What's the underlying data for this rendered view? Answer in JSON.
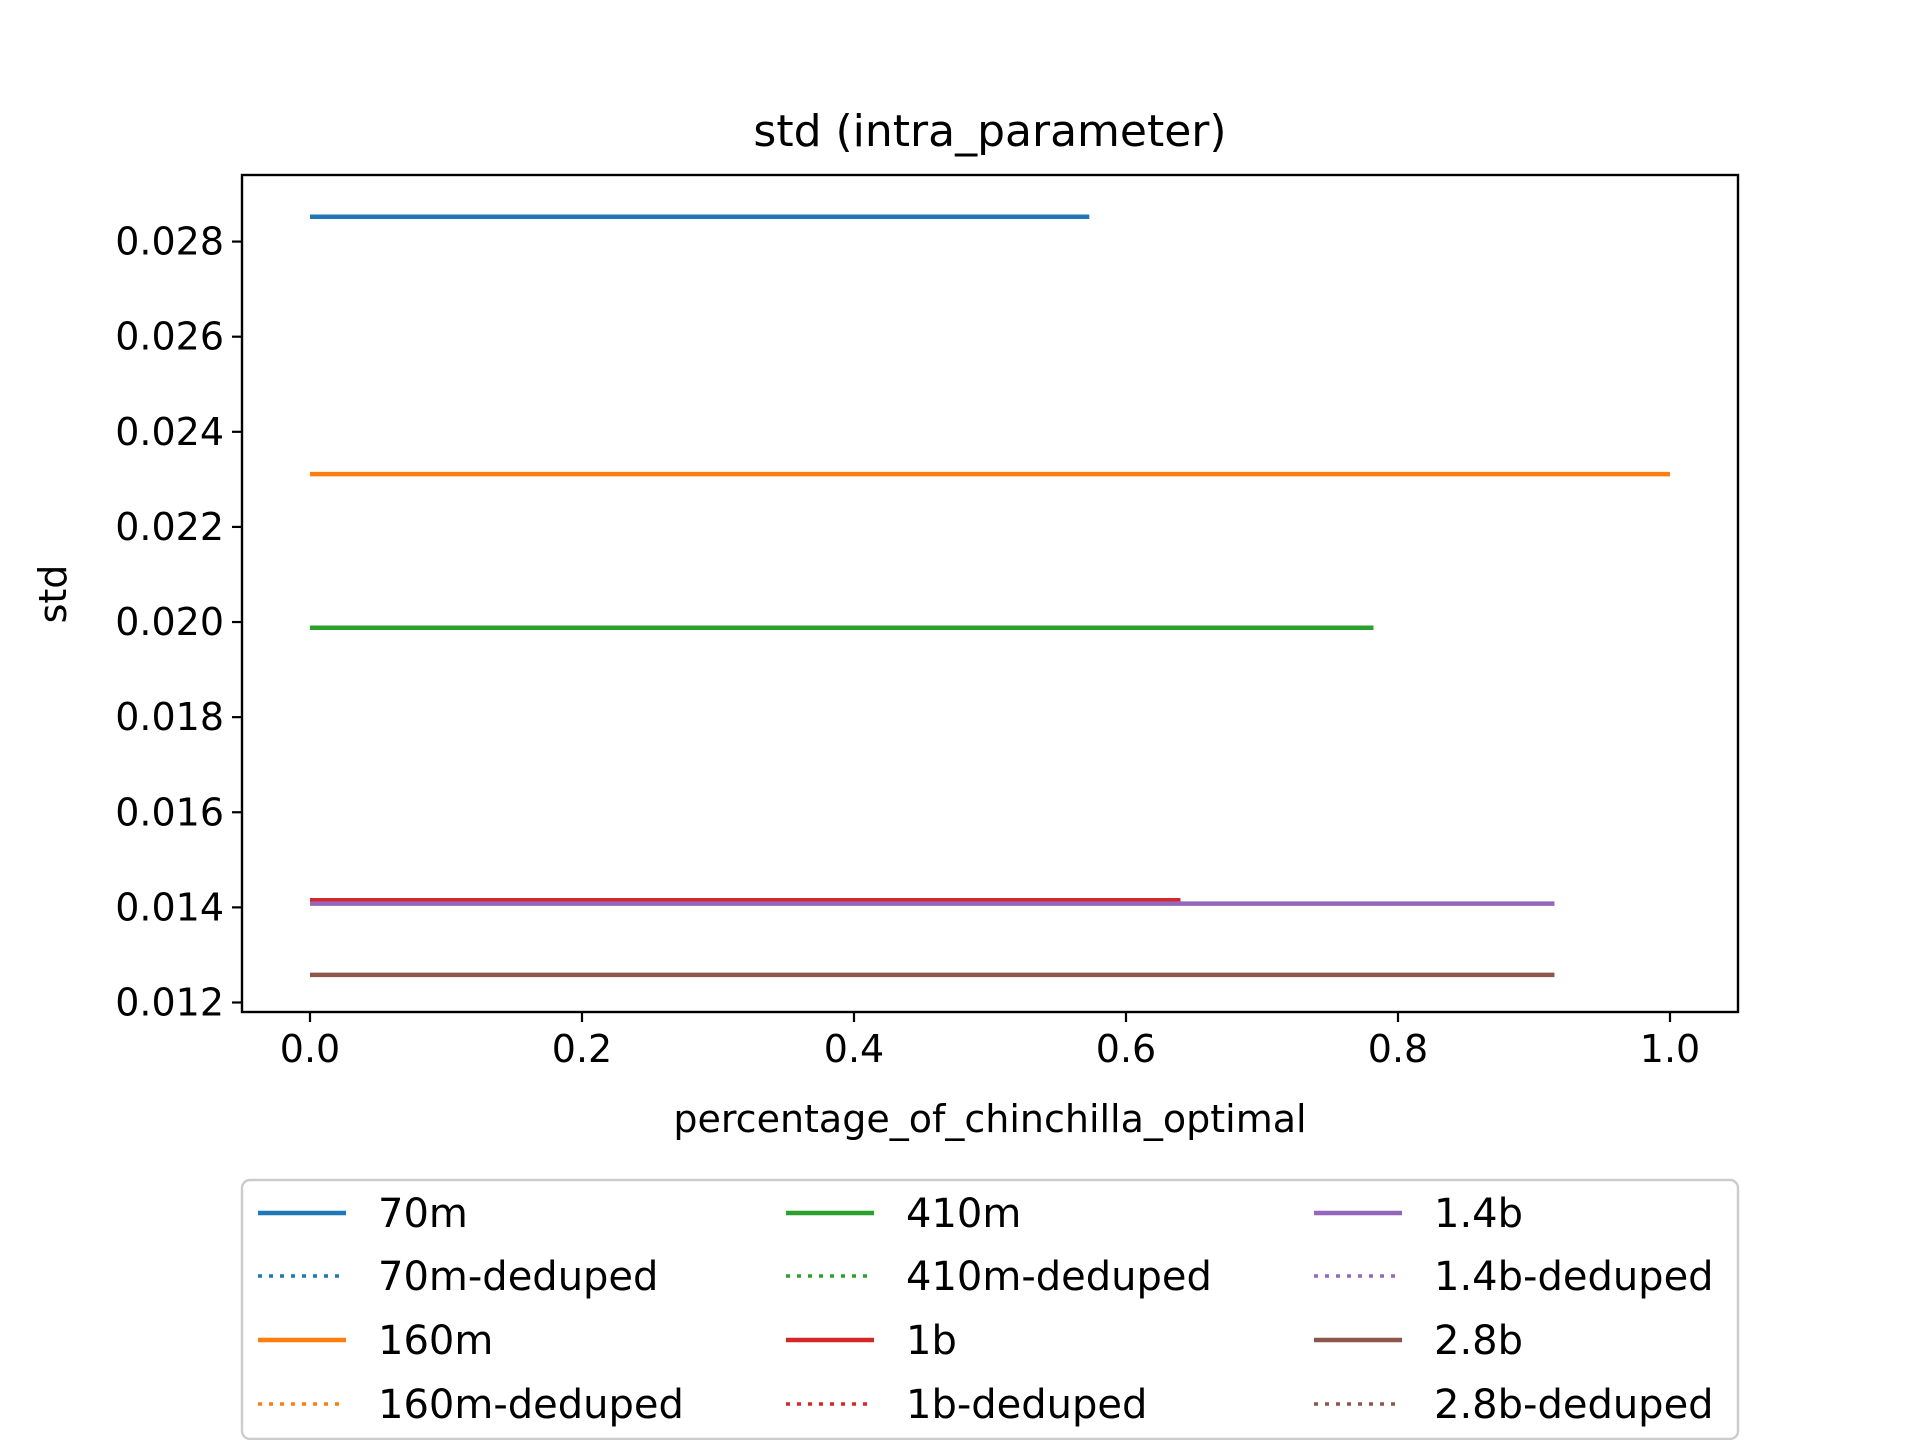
{
  "chart_data": {
    "type": "line",
    "title": "std (intra_parameter)",
    "xlabel": "percentage_of_chinchilla_optimal",
    "ylabel": "std",
    "xlim": [
      -0.05,
      1.05
    ],
    "ylim": [
      0.0118,
      0.0294
    ],
    "xticks": [
      0.0,
      0.2,
      0.4,
      0.6,
      0.8,
      1.0
    ],
    "xtick_labels": [
      "0.0",
      "0.2",
      "0.4",
      "0.6",
      "0.8",
      "1.0"
    ],
    "yticks": [
      0.012,
      0.014,
      0.016,
      0.018,
      0.02,
      0.022,
      0.024,
      0.026,
      0.028
    ],
    "ytick_labels": [
      "0.012",
      "0.014",
      "0.016",
      "0.018",
      "0.020",
      "0.022",
      "0.024",
      "0.026",
      "0.028"
    ],
    "grid": false,
    "legend_position": "bottom-outside",
    "series": [
      {
        "name": "70m",
        "color": "#1f77b4",
        "style": "solid",
        "x": [
          0.0,
          0.573
        ],
        "y": [
          0.02852,
          0.02852
        ]
      },
      {
        "name": "70m-deduped",
        "color": "#1f77b4",
        "style": "dotted",
        "x": [
          0.0,
          0.573
        ],
        "y": [
          0.02852,
          0.02852
        ]
      },
      {
        "name": "160m",
        "color": "#ff7f0e",
        "style": "solid",
        "x": [
          0.0,
          1.0
        ],
        "y": [
          0.02311,
          0.02311
        ]
      },
      {
        "name": "160m-deduped",
        "color": "#ff7f0e",
        "style": "dotted",
        "x": [
          0.0,
          1.0
        ],
        "y": [
          0.02311,
          0.02311
        ]
      },
      {
        "name": "410m",
        "color": "#2ca02c",
        "style": "solid",
        "x": [
          0.0,
          0.782
        ],
        "y": [
          0.01988,
          0.01988
        ]
      },
      {
        "name": "410m-deduped",
        "color": "#2ca02c",
        "style": "dotted",
        "x": [
          0.0,
          0.782
        ],
        "y": [
          0.01988,
          0.01988
        ]
      },
      {
        "name": "1b",
        "color": "#d62728",
        "style": "solid",
        "x": [
          0.0,
          0.64
        ],
        "y": [
          0.01415,
          0.01415
        ]
      },
      {
        "name": "1b-deduped",
        "color": "#d62728",
        "style": "dotted",
        "x": [
          0.0,
          0.64
        ],
        "y": [
          0.01415,
          0.01415
        ]
      },
      {
        "name": "1.4b",
        "color": "#9467bd",
        "style": "solid",
        "x": [
          0.0,
          0.915
        ],
        "y": [
          0.01408,
          0.01408
        ]
      },
      {
        "name": "1.4b-deduped",
        "color": "#9467bd",
        "style": "dotted",
        "x": [
          0.0,
          0.915
        ],
        "y": [
          0.01408,
          0.01408
        ]
      },
      {
        "name": "2.8b",
        "color": "#8c564b",
        "style": "solid",
        "x": [
          0.0,
          0.915
        ],
        "y": [
          0.01258,
          0.01258
        ]
      },
      {
        "name": "2.8b-deduped",
        "color": "#8c564b",
        "style": "dotted",
        "x": [
          0.0,
          0.915
        ],
        "y": [
          0.01258,
          0.01258
        ]
      }
    ]
  }
}
